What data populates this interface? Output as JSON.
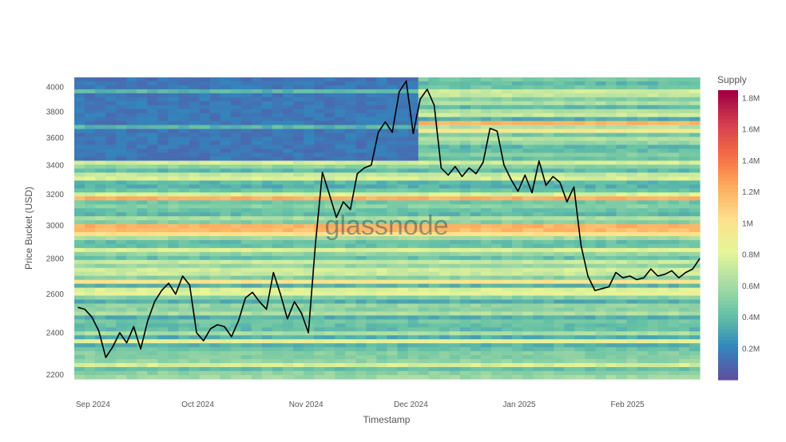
{
  "chart_data": {
    "type": "heatmap",
    "title": "",
    "xlabel": "Timestamp",
    "ylabel": "Price Bucket (USD)",
    "x_ticks": [
      "Sep 2024",
      "Oct 2024",
      "Nov 2024",
      "Dec 2024",
      "Jan 2025",
      "Feb 2025"
    ],
    "y_ticks": [
      2200,
      2400,
      2600,
      2800,
      3000,
      3200,
      3400,
      3600,
      3800,
      4000
    ],
    "y_scale": "log",
    "ylim": [
      2180,
      4080
    ],
    "xlim": [
      "2024-08-31",
      "2025-02-26"
    ],
    "colorbar": {
      "title": "Supply",
      "ticks": [
        "0.2M",
        "0.4M",
        "0.6M",
        "0.8M",
        "1M",
        "1.2M",
        "1.4M",
        "1.6M",
        "1.8M"
      ],
      "range": [
        0,
        1.85
      ],
      "colors": [
        "#5e4fa2",
        "#3288bd",
        "#66c2a5",
        "#abdda4",
        "#e6f598",
        "#fee08b",
        "#fdae61",
        "#f46d43",
        "#d53e4f",
        "#9e0142"
      ]
    },
    "watermark": "glassnode",
    "series": [
      {
        "type": "line",
        "color": "#000000",
        "x": [
          "2024-09-01",
          "2024-09-03",
          "2024-09-05",
          "2024-09-07",
          "2024-09-09",
          "2024-09-11",
          "2024-09-13",
          "2024-09-15",
          "2024-09-17",
          "2024-09-19",
          "2024-09-21",
          "2024-09-23",
          "2024-09-25",
          "2024-09-27",
          "2024-09-29",
          "2024-10-01",
          "2024-10-03",
          "2024-10-05",
          "2024-10-07",
          "2024-10-09",
          "2024-10-11",
          "2024-10-13",
          "2024-10-15",
          "2024-10-17",
          "2024-10-19",
          "2024-10-21",
          "2024-10-23",
          "2024-10-25",
          "2024-10-27",
          "2024-10-29",
          "2024-10-31",
          "2024-11-02",
          "2024-11-04",
          "2024-11-06",
          "2024-11-08",
          "2024-11-10",
          "2024-11-12",
          "2024-11-14",
          "2024-11-16",
          "2024-11-18",
          "2024-11-20",
          "2024-11-22",
          "2024-11-24",
          "2024-11-26",
          "2024-11-28",
          "2024-11-30",
          "2024-12-02",
          "2024-12-04",
          "2024-12-06",
          "2024-12-08",
          "2024-12-10",
          "2024-12-12",
          "2024-12-14",
          "2024-12-16",
          "2024-12-18",
          "2024-12-20",
          "2024-12-22",
          "2024-12-24",
          "2024-12-26",
          "2024-12-28",
          "2024-12-30",
          "2025-01-01",
          "2025-01-03",
          "2025-01-05",
          "2025-01-07",
          "2025-01-09",
          "2025-01-11",
          "2025-01-13",
          "2025-01-15",
          "2025-01-17",
          "2025-01-19",
          "2025-01-21",
          "2025-01-23",
          "2025-01-25",
          "2025-01-27",
          "2025-01-29",
          "2025-01-31",
          "2025-02-02",
          "2025-02-04",
          "2025-02-06",
          "2025-02-08",
          "2025-02-10",
          "2025-02-12",
          "2025-02-14",
          "2025-02-16",
          "2025-02-18",
          "2025-02-20",
          "2025-02-22",
          "2025-02-24",
          "2025-02-26"
        ],
        "y": [
          2530,
          2520,
          2480,
          2410,
          2280,
          2330,
          2400,
          2350,
          2430,
          2320,
          2460,
          2560,
          2620,
          2660,
          2600,
          2700,
          2650,
          2400,
          2360,
          2420,
          2440,
          2430,
          2380,
          2460,
          2580,
          2610,
          2560,
          2520,
          2720,
          2600,
          2470,
          2560,
          2500,
          2400,
          2880,
          3350,
          3200,
          3050,
          3150,
          3100,
          3340,
          3380,
          3400,
          3640,
          3720,
          3640,
          3960,
          4050,
          3630,
          3900,
          3980,
          3850,
          3380,
          3330,
          3390,
          3320,
          3380,
          3340,
          3420,
          3670,
          3650,
          3400,
          3300,
          3220,
          3330,
          3210,
          3430,
          3260,
          3320,
          3280,
          3150,
          3250,
          2880,
          2700,
          2620,
          2630,
          2640,
          2720,
          2690,
          2700,
          2680,
          2690,
          2740,
          2700,
          2710,
          2730,
          2690,
          2720,
          2740,
          2800
        ]
      }
    ]
  }
}
